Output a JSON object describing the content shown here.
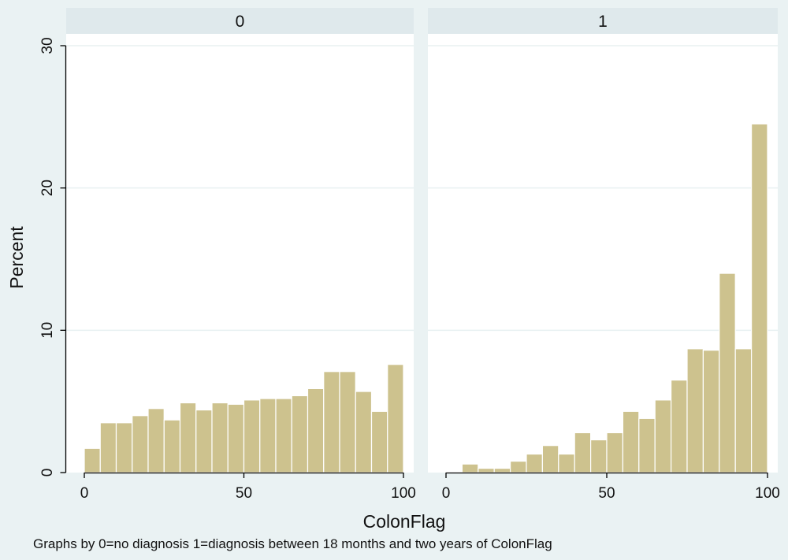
{
  "chart_data": {
    "type": "bar",
    "subtype": "histogram",
    "xlabel": "ColonFlag",
    "ylabel": "Percent",
    "note": "Graphs by  0=no diagnosis 1=diagnosis between  18 months and two years of ColonFlag",
    "xlim": [
      0,
      100
    ],
    "ylim": [
      0,
      30
    ],
    "x_ticks": [
      0,
      50,
      100
    ],
    "y_ticks": [
      0,
      10,
      20,
      30
    ],
    "grid": true,
    "bar_color": "#cdc28e",
    "bar_edge_color": "#b8ad78",
    "strip_color": "#dfe9ec",
    "plot_background": "#ffffff",
    "gridline_color": "#e8f0f1",
    "panels": [
      {
        "label": "0",
        "bins": [
          {
            "x0": 0,
            "x1": 5,
            "value": 1.7
          },
          {
            "x0": 5,
            "x1": 10,
            "value": 3.5
          },
          {
            "x0": 10,
            "x1": 15,
            "value": 3.5
          },
          {
            "x0": 15,
            "x1": 20,
            "value": 4.0
          },
          {
            "x0": 20,
            "x1": 25,
            "value": 4.5
          },
          {
            "x0": 25,
            "x1": 30,
            "value": 3.7
          },
          {
            "x0": 30,
            "x1": 35,
            "value": 4.9
          },
          {
            "x0": 35,
            "x1": 40,
            "value": 4.4
          },
          {
            "x0": 40,
            "x1": 45,
            "value": 4.9
          },
          {
            "x0": 45,
            "x1": 50,
            "value": 4.8
          },
          {
            "x0": 50,
            "x1": 55,
            "value": 5.1
          },
          {
            "x0": 55,
            "x1": 60,
            "value": 5.2
          },
          {
            "x0": 60,
            "x1": 65,
            "value": 5.2
          },
          {
            "x0": 65,
            "x1": 70,
            "value": 5.4
          },
          {
            "x0": 70,
            "x1": 75,
            "value": 5.9
          },
          {
            "x0": 75,
            "x1": 80,
            "value": 7.1
          },
          {
            "x0": 80,
            "x1": 85,
            "value": 7.1
          },
          {
            "x0": 85,
            "x1": 90,
            "value": 5.7
          },
          {
            "x0": 90,
            "x1": 95,
            "value": 4.3
          },
          {
            "x0": 95,
            "x1": 100,
            "value": 7.6
          }
        ]
      },
      {
        "label": "1",
        "bins": [
          {
            "x0": 5,
            "x1": 10,
            "value": 0.6
          },
          {
            "x0": 10,
            "x1": 15,
            "value": 0.3
          },
          {
            "x0": 15,
            "x1": 20,
            "value": 0.3
          },
          {
            "x0": 20,
            "x1": 25,
            "value": 0.8
          },
          {
            "x0": 25,
            "x1": 30,
            "value": 1.3
          },
          {
            "x0": 30,
            "x1": 35,
            "value": 1.9
          },
          {
            "x0": 35,
            "x1": 40,
            "value": 1.3
          },
          {
            "x0": 40,
            "x1": 45,
            "value": 2.8
          },
          {
            "x0": 45,
            "x1": 50,
            "value": 2.3
          },
          {
            "x0": 50,
            "x1": 55,
            "value": 2.8
          },
          {
            "x0": 55,
            "x1": 60,
            "value": 4.3
          },
          {
            "x0": 60,
            "x1": 65,
            "value": 3.8
          },
          {
            "x0": 65,
            "x1": 70,
            "value": 5.1
          },
          {
            "x0": 70,
            "x1": 75,
            "value": 6.5
          },
          {
            "x0": 75,
            "x1": 80,
            "value": 8.7
          },
          {
            "x0": 80,
            "x1": 85,
            "value": 8.6
          },
          {
            "x0": 85,
            "x1": 90,
            "value": 14.0
          },
          {
            "x0": 90,
            "x1": 95,
            "value": 8.7
          },
          {
            "x0": 95,
            "x1": 100,
            "value": 24.5
          }
        ]
      }
    ]
  }
}
